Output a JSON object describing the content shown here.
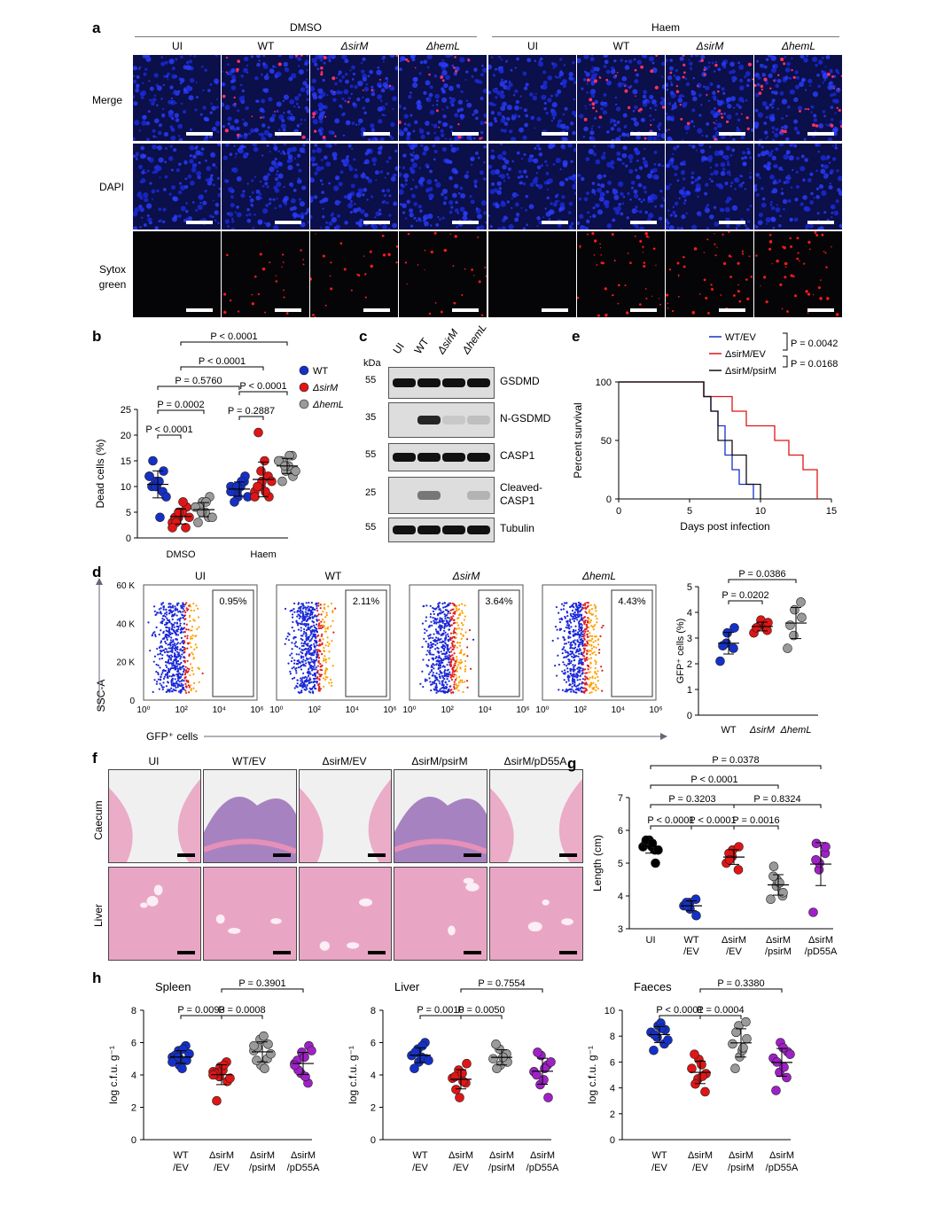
{
  "a": {
    "letter": "a",
    "group_dmso": "DMSO",
    "group_haem": "Haem",
    "columns": [
      "UI",
      "WT",
      "ΔsirM",
      "ΔhemL",
      "UI",
      "WT",
      "ΔsirM",
      "ΔhemL"
    ],
    "rows": [
      "Merge",
      "DAPI",
      "Sytox\ngreen"
    ]
  },
  "b": {
    "letter": "b",
    "ylabel": "Dead cells (%)",
    "yticks": [
      "0",
      "5",
      "10",
      "15",
      "20",
      "25"
    ],
    "groups": [
      "DMSO",
      "Haem"
    ],
    "legend": [
      "WT",
      "ΔsirM",
      "ΔhemL"
    ],
    "pvalues": [
      "P < 0.0001",
      "P < 0.0001",
      "P = 0.5760",
      "P < 0.0001",
      "P = 0.0002",
      "P = 0.2887",
      "P < 0.0001"
    ]
  },
  "c": {
    "letter": "c",
    "kda": "kDa",
    "lanes": [
      "UI",
      "WT",
      "ΔsirM",
      "ΔhemL"
    ],
    "blots": [
      {
        "kda": "55",
        "label": "GSDMD"
      },
      {
        "kda": "35",
        "label": "N-GSDMD"
      },
      {
        "kda": "55",
        "label": "CASP1"
      },
      {
        "kda": "25",
        "label": "Cleaved-\nCASP1"
      },
      {
        "kda": "55",
        "label": "Tubulin"
      }
    ]
  },
  "e": {
    "letter": "e",
    "ylabel": "Percent survival",
    "xlabel": "Days post infection",
    "legend": [
      "WT/EV",
      "ΔsirM/EV",
      "ΔsirM/psirM"
    ],
    "p1": "P = 0.0042",
    "p2": "P = 0.0168"
  },
  "d": {
    "letter": "d",
    "titles": [
      "UI",
      "WT",
      "ΔsirM",
      "ΔhemL"
    ],
    "percents": [
      "0.95%",
      "2.11%",
      "3.64%",
      "4.43%"
    ],
    "yaxis": "SSC-A",
    "xaxis": "GFP⁺ cells",
    "yticks": [
      "60 K",
      "40 K",
      "20 K",
      "0"
    ],
    "xticks": [
      "10⁰",
      "10²",
      "10⁴",
      "10⁶"
    ],
    "scatter_ylabel": "GFP⁺ cells (%)",
    "scatter_groups": [
      "WT",
      "ΔsirM",
      "ΔhemL"
    ],
    "scatter_yticks": [
      "0",
      "1",
      "2",
      "3",
      "4",
      "5"
    ],
    "p1": "P = 0.0386",
    "p2": "P = 0.0202"
  },
  "f": {
    "letter": "f",
    "columns": [
      "UI",
      "WT/EV",
      "ΔsirM/EV",
      "ΔsirM/psirM",
      "ΔsirM/pD55A"
    ],
    "rows": [
      "Caecum",
      "Liver"
    ]
  },
  "g": {
    "letter": "g",
    "ylabel": "Length (cm)",
    "yticks": [
      "3",
      "4",
      "5",
      "6",
      "7"
    ],
    "groups": [
      "UI",
      "WT\n/EV",
      "ΔsirM\n/EV",
      "ΔsirM\n/psirM",
      "ΔsirM\n/pD55A"
    ],
    "pvalues": [
      "P = 0.0378",
      "P < 0.0001",
      "P = 0.3203",
      "P = 0.8324",
      "P < 0.0001",
      "P < 0.0001",
      "P = 0.0016"
    ]
  },
  "h": {
    "letter": "h",
    "ylabel": "log c.f.u. g⁻¹",
    "groups": [
      "WT\n/EV",
      "ΔsirM\n/EV",
      "ΔsirM\n/psirM",
      "ΔsirM\n/pD55A"
    ],
    "panels": [
      {
        "title": "Spleen",
        "p_top": "P = 0.3901",
        "p_a": "P = 0.0093",
        "p_b": "P = 0.0008",
        "yticks": [
          "0",
          "2",
          "4",
          "6",
          "8"
        ]
      },
      {
        "title": "Liver",
        "p_top": "P = 0.7554",
        "p_a": "P = 0.0010",
        "p_b": "P = 0.0050",
        "yticks": [
          "0",
          "2",
          "4",
          "6",
          "8"
        ]
      },
      {
        "title": "Faeces",
        "p_top": "P = 0.3380",
        "p_a": "P < 0.0001",
        "p_b": "P = 0.0004",
        "yticks": [
          "0",
          "2",
          "4",
          "6",
          "8",
          "10"
        ]
      }
    ]
  },
  "colors": {
    "wt": "#1530c8",
    "sirM": "#e01515",
    "hemL": "#9a9a9a",
    "pD55A": "#a020c8",
    "ui": "#000000"
  },
  "chart_data": [
    {
      "panel": "b",
      "type": "scatter",
      "ylabel": "Dead cells (%)",
      "ylim": [
        0,
        25
      ],
      "categories": [
        "DMSO",
        "Haem"
      ],
      "series": [
        {
          "name": "WT",
          "values": [
            [
              12,
              11,
              10,
              9,
              13,
              10,
              15,
              11,
              4,
              8,
              12,
              10
            ],
            [
              10,
              9,
              8,
              11,
              12,
              9,
              7,
              10,
              11,
              8,
              9,
              10
            ]
          ]
        },
        {
          "name": "ΔsirM",
          "values": [
            [
              3,
              4,
              5,
              2,
              6,
              4,
              3,
              5,
              7,
              4,
              2,
              5
            ],
            [
              9,
              10,
              11,
              12,
              8,
              10,
              20.5,
              15,
              9,
              11,
              8,
              13
            ]
          ]
        },
        {
          "name": "ΔhemL",
          "values": [
            [
              6,
              5,
              7,
              4,
              8,
              3,
              6,
              5,
              7,
              4,
              6,
              5
            ],
            [
              15,
              14,
              13,
              16,
              12,
              15,
              11,
              14,
              16,
              13,
              15,
              14
            ]
          ]
        }
      ]
    },
    {
      "panel": "e",
      "type": "line",
      "xlabel": "Days post infection",
      "ylabel": "Percent survival",
      "xlim": [
        0,
        15
      ],
      "ylim": [
        0,
        100
      ],
      "series": [
        {
          "name": "WT/EV",
          "x": [
            0,
            5.5,
            6,
            6.5,
            7,
            7.5,
            8,
            8.5,
            9,
            9.5
          ],
          "y": [
            100,
            100,
            87.5,
            75,
            62.5,
            37.5,
            25,
            12.5,
            12.5,
            0
          ]
        },
        {
          "name": "ΔsirM/EV",
          "x": [
            0,
            5.5,
            6,
            7,
            8,
            9,
            10,
            11,
            12,
            13,
            14
          ],
          "y": [
            100,
            100,
            87.5,
            87.5,
            75,
            62.5,
            62.5,
            50,
            37.5,
            25,
            0
          ]
        },
        {
          "name": "ΔsirM/psirM",
          "x": [
            0,
            5.5,
            6,
            6.5,
            7,
            8,
            9,
            10
          ],
          "y": [
            100,
            100,
            87.5,
            75,
            50,
            37.5,
            12.5,
            0
          ]
        }
      ]
    },
    {
      "panel": "d",
      "type": "scatter",
      "ylabel": "GFP⁺ cells (%)",
      "ylim": [
        0,
        5
      ],
      "categories": [
        "WT",
        "ΔsirM",
        "ΔhemL"
      ],
      "series": [
        {
          "name": "WT",
          "values": [
            2.1,
            2.8,
            3.2,
            2.6,
            3.4,
            2.7
          ]
        },
        {
          "name": "ΔsirM",
          "values": [
            3.2,
            3.5,
            3.7,
            3.3,
            3.6,
            3.4
          ]
        },
        {
          "name": "ΔhemL",
          "values": [
            2.6,
            3.1,
            4.1,
            4.4,
            3.8,
            3.5
          ]
        }
      ]
    },
    {
      "panel": "g",
      "type": "scatter",
      "ylabel": "Length (cm)",
      "ylim": [
        3,
        7
      ],
      "categories": [
        "UI",
        "WT/EV",
        "ΔsirM/EV",
        "ΔsirM/psirM",
        "ΔsirM/pD55A"
      ],
      "values": [
        [
          5.5,
          5.6,
          5.7,
          5.4,
          5.0,
          5.6,
          5.7,
          5.5,
          5.6,
          5.4
        ],
        [
          3.7,
          3.8,
          3.6,
          3.9,
          3.4,
          3.8,
          3.7
        ],
        [
          5.0,
          5.2,
          5.4,
          4.8,
          5.5,
          5.3,
          5.1
        ],
        [
          3.9,
          4.3,
          4.5,
          4.0,
          4.1,
          4.6,
          4.9,
          4.4
        ],
        [
          3.5,
          4.8,
          5.0,
          5.3,
          5.5,
          5.1,
          5.6
        ]
      ]
    },
    {
      "panel": "h-spleen",
      "type": "scatter",
      "ylabel": "log c.f.u. g⁻¹",
      "ylim": [
        0,
        8
      ],
      "categories": [
        "WT/EV",
        "ΔsirM/EV",
        "ΔsirM/psirM",
        "ΔsirM/pD55A"
      ],
      "values": [
        [
          5.1,
          5.5,
          4.6,
          5.8,
          4.9,
          5.2,
          5.0,
          4.4,
          5.6,
          5.3,
          4.8,
          5.1
        ],
        [
          4.2,
          3.9,
          4.5,
          4.8,
          3.6,
          4.1,
          2.4,
          4.3,
          4.6,
          3.8,
          4.0
        ],
        [
          5.5,
          6.2,
          4.6,
          5.0,
          5.9,
          4.9,
          5.7,
          6.4,
          4.4,
          5.3,
          5.8
        ],
        [
          4.7,
          4.1,
          5.4,
          3.5,
          5.8,
          4.9,
          4.3,
          5.1,
          3.9,
          5.5,
          4.6
        ]
      ]
    },
    {
      "panel": "h-liver",
      "type": "scatter",
      "ylabel": "log c.f.u. g⁻¹",
      "ylim": [
        0,
        8
      ],
      "categories": [
        "WT/EV",
        "ΔsirM/EV",
        "ΔsirM/psirM",
        "ΔsirM/pD55A"
      ],
      "values": [
        [
          5.2,
          5.6,
          4.8,
          6.0,
          5.0,
          4.4,
          5.4,
          5.1,
          5.8,
          4.9
        ],
        [
          3.8,
          4.3,
          2.6,
          3.5,
          4.7,
          3.9,
          3.1,
          4.1,
          3.6
        ],
        [
          5.0,
          5.6,
          4.6,
          5.3,
          4.8,
          5.9,
          4.4,
          5.1
        ],
        [
          4.2,
          3.4,
          5.2,
          4.6,
          2.6,
          4.0,
          5.4,
          3.7,
          4.4,
          4.8
        ]
      ]
    },
    {
      "panel": "h-faeces",
      "type": "scatter",
      "ylabel": "log c.f.u. g⁻¹",
      "ylim": [
        0,
        10
      ],
      "categories": [
        "WT/EV",
        "ΔsirM/EV",
        "ΔsirM/psirM",
        "ΔsirM/pD55A"
      ],
      "values": [
        [
          8.3,
          7.9,
          8.8,
          7.4,
          8.5,
          6.9,
          8.1,
          9.0,
          8.6,
          7.7
        ],
        [
          5.5,
          4.7,
          6.2,
          3.7,
          5.1,
          6.6,
          4.3,
          5.8,
          4.9
        ],
        [
          7.4,
          8.8,
          6.4,
          9.1,
          7.8,
          5.5,
          8.3,
          6.9,
          7.1
        ],
        [
          6.3,
          5.2,
          7.5,
          4.8,
          6.8,
          3.8,
          6.0,
          7.1,
          5.6,
          6.6
        ]
      ]
    }
  ]
}
